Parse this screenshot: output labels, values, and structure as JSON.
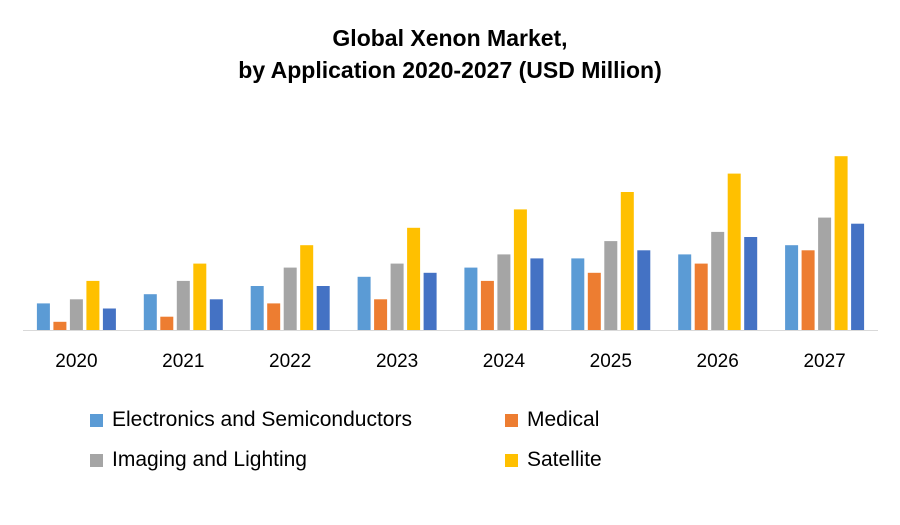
{
  "chart_data": {
    "type": "bar",
    "title_lines": [
      "Global Xenon Market,",
      "by Application 2020-2027 (USD Million)"
    ],
    "categories": [
      "2020",
      "2021",
      "2022",
      "2023",
      "2024",
      "2025",
      "2026",
      "2027"
    ],
    "series": [
      {
        "name": "Electronics and Semiconductors",
        "color": "#5B9BD5",
        "values": [
          26,
          35,
          43,
          52,
          61,
          70,
          74,
          83
        ]
      },
      {
        "name": "Medical",
        "color": "#ED7D31",
        "values": [
          8,
          13,
          26,
          30,
          48,
          56,
          65,
          78
        ]
      },
      {
        "name": "Imaging and Lighting",
        "color": "#A5A5A5",
        "values": [
          30,
          48,
          61,
          65,
          74,
          87,
          96,
          110
        ]
      },
      {
        "name": "Satellite",
        "color": "#FFC000",
        "values": [
          48,
          65,
          83,
          100,
          118,
          135,
          153,
          170
        ]
      },
      {
        "name": "",
        "color": "#4472C4",
        "values": [
          21,
          30,
          43,
          56,
          70,
          78,
          91,
          104
        ]
      }
    ],
    "ylim": [
      0,
      180
    ],
    "grid": false,
    "legend_position": "bottom"
  }
}
